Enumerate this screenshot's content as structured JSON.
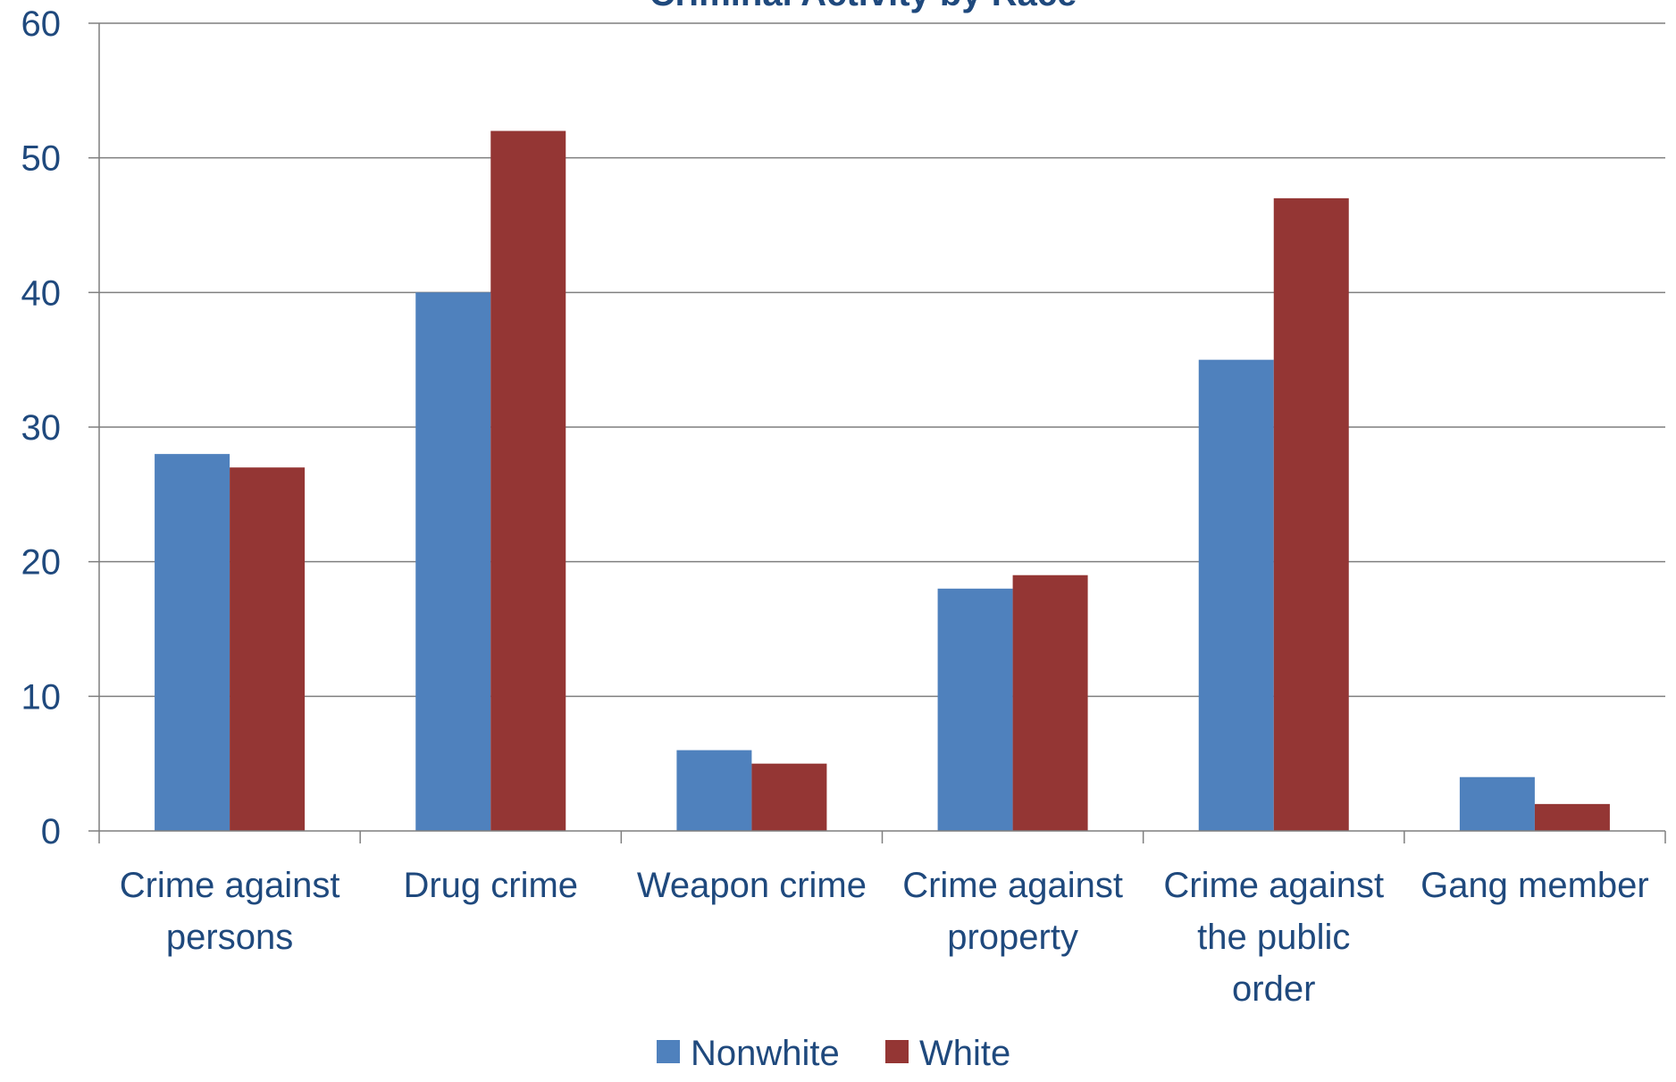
{
  "chart_data": {
    "type": "bar",
    "title": "Criminal Activity by Race",
    "xlabel": "",
    "ylabel": "",
    "ylim": [
      0,
      60
    ],
    "yticks": [
      "0",
      "10",
      "20",
      "30",
      "40",
      "50",
      "60"
    ],
    "categories": [
      [
        "Crime against",
        "persons"
      ],
      [
        "Drug crime"
      ],
      [
        "Weapon crime"
      ],
      [
        "Crime against",
        "property"
      ],
      [
        "Crime against",
        "the public",
        "order"
      ],
      [
        "Gang member"
      ]
    ],
    "series": [
      {
        "name": "Nonwhite",
        "color": "#4F81BD",
        "values": [
          28,
          40,
          6,
          18,
          35,
          4
        ]
      },
      {
        "name": "White",
        "color": "#943634",
        "values": [
          27,
          52,
          5,
          19,
          47,
          2
        ]
      }
    ],
    "grid": true,
    "legend": "bottom",
    "colors": {
      "text": "#1F497D",
      "title": "#1F497D",
      "axis": "#7F7F7F",
      "grid": "#7F7F7F"
    }
  }
}
